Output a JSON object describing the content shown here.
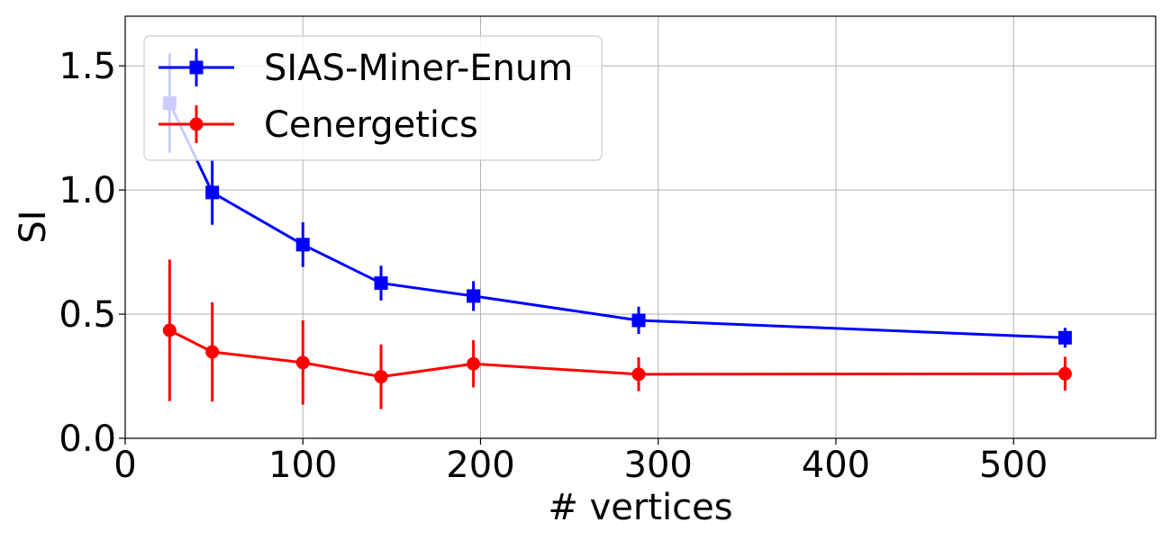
{
  "chart_data": {
    "type": "line",
    "xlabel": "# vertices",
    "ylabel": "SI",
    "xlim": [
      0,
      580
    ],
    "ylim": [
      0,
      1.7
    ],
    "x_ticks": [
      "0",
      "100",
      "200",
      "300",
      "400",
      "500"
    ],
    "y_ticks": [
      "0.0",
      "0.5",
      "1.0",
      "1.5"
    ],
    "grid": true,
    "legend_position": "top-left",
    "series": [
      {
        "name": "SIAS-Miner-Enum",
        "color": "#0000ff",
        "marker": "square",
        "x": [
          25,
          49,
          100,
          144,
          196,
          289,
          529
        ],
        "y": [
          1.35,
          0.99,
          0.78,
          0.625,
          0.573,
          0.475,
          0.405
        ],
        "err": [
          0.2,
          0.13,
          0.09,
          0.07,
          0.06,
          0.055,
          0.04
        ]
      },
      {
        "name": "Cenergetics",
        "color": "#ff0000",
        "marker": "circle",
        "x": [
          25,
          49,
          100,
          144,
          196,
          289,
          529
        ],
        "y": [
          0.435,
          0.348,
          0.305,
          0.248,
          0.3,
          0.258,
          0.26
        ],
        "err": [
          0.285,
          0.2,
          0.17,
          0.13,
          0.095,
          0.068,
          0.068
        ]
      }
    ]
  }
}
